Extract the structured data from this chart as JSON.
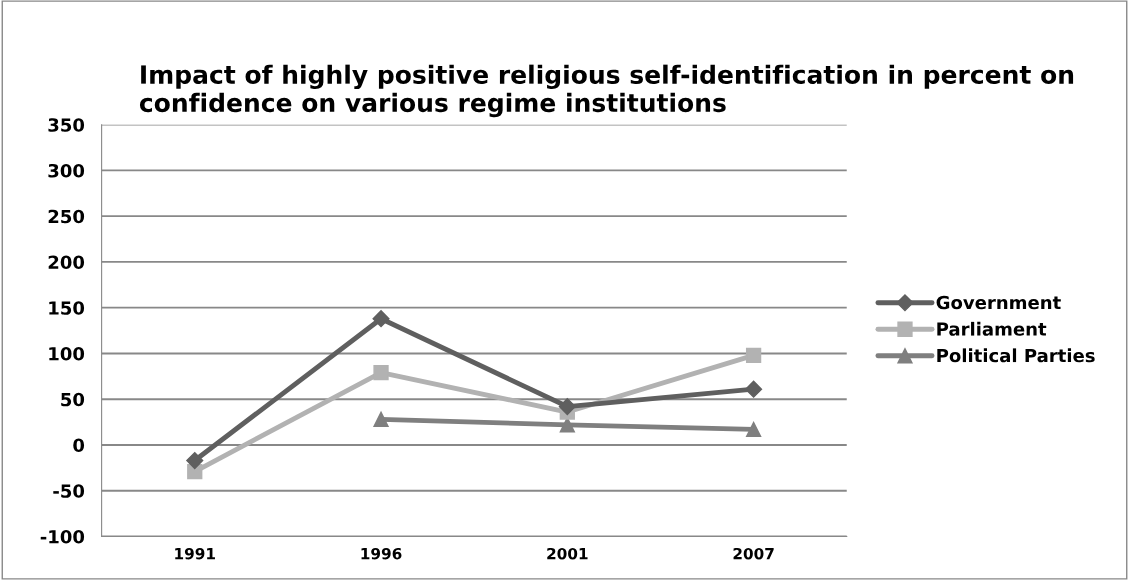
{
  "chart_data": {
    "type": "line",
    "title": "Impact of highly positive religious self-identification in percent on confidence on various regime institutions",
    "categories": [
      "1991",
      "1996",
      "2001",
      "2007"
    ],
    "series": [
      {
        "name": "Government",
        "color": "#5f5f5f",
        "marker": "diamond",
        "values": [
          -17,
          138,
          42,
          61
        ]
      },
      {
        "name": "Parliament",
        "color": "#b2b2b2",
        "marker": "square",
        "values": [
          -29,
          79,
          36,
          98
        ]
      },
      {
        "name": "Political Parties",
        "color": "#7f7f7f",
        "marker": "triangle",
        "values": [
          null,
          28,
          22,
          17
        ]
      }
    ],
    "ylim": [
      -100,
      350
    ],
    "yticks": [
      -100,
      -50,
      0,
      50,
      100,
      150,
      200,
      250,
      300,
      350
    ],
    "grid": "y",
    "legend": "right",
    "line_style": "solid"
  }
}
